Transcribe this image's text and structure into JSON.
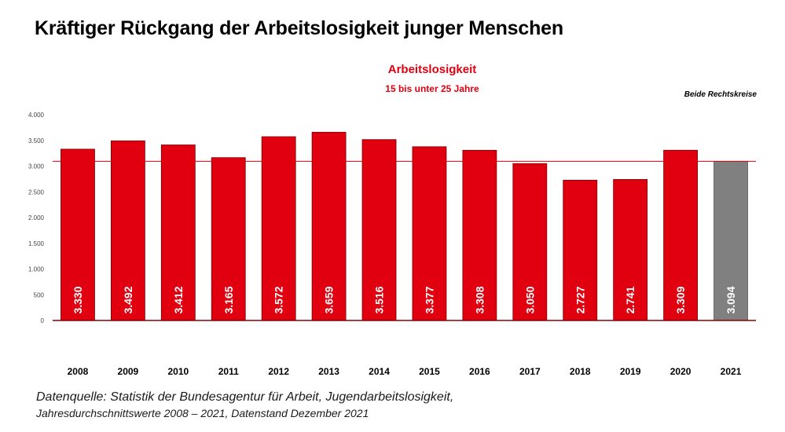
{
  "page_title": "Kräftiger Rückgang der Arbeitslosigkeit junger Menschen",
  "annotation": "Beide Rechtskreise",
  "source_line1": "Datenquelle: Statistik der Bundesagentur für Arbeit, Jugendarbeitslosigkeit,",
  "source_line2": "Jahresdurchschnittswerte 2008 – 2021, Datenstand Dezember 2021",
  "colors": {
    "bar": "#e0000f",
    "highlight": "#808080",
    "accent": "#e0000f"
  },
  "chart_data": {
    "type": "bar",
    "title": "Arbeitslosigkeit",
    "subtitle": "15 bis unter 25 Jahre",
    "categories": [
      "2008",
      "2009",
      "2010",
      "2011",
      "2012",
      "2013",
      "2014",
      "2015",
      "2016",
      "2017",
      "2018",
      "2019",
      "2020",
      "2021"
    ],
    "values": [
      3330,
      3492,
      3412,
      3165,
      3572,
      3659,
      3516,
      3377,
      3308,
      3050,
      2727,
      2741,
      3309,
      3094
    ],
    "value_labels": [
      "3.330",
      "3.492",
      "3.412",
      "3.165",
      "3.572",
      "3.659",
      "3.516",
      "3.377",
      "3.308",
      "3.050",
      "2.727",
      "2.741",
      "3.309",
      "3.094"
    ],
    "highlight_category": "2021",
    "reference_line": 3094,
    "ylim": [
      0,
      4000
    ],
    "yticks": [
      0,
      500,
      1000,
      1500,
      2000,
      2500,
      3000,
      3500,
      4000
    ],
    "ytick_labels": [
      "0",
      "500",
      "1.000",
      "1.500",
      "2.000",
      "2.500",
      "3.000",
      "3.500",
      "4.000"
    ],
    "grid": false,
    "legend": "none"
  }
}
